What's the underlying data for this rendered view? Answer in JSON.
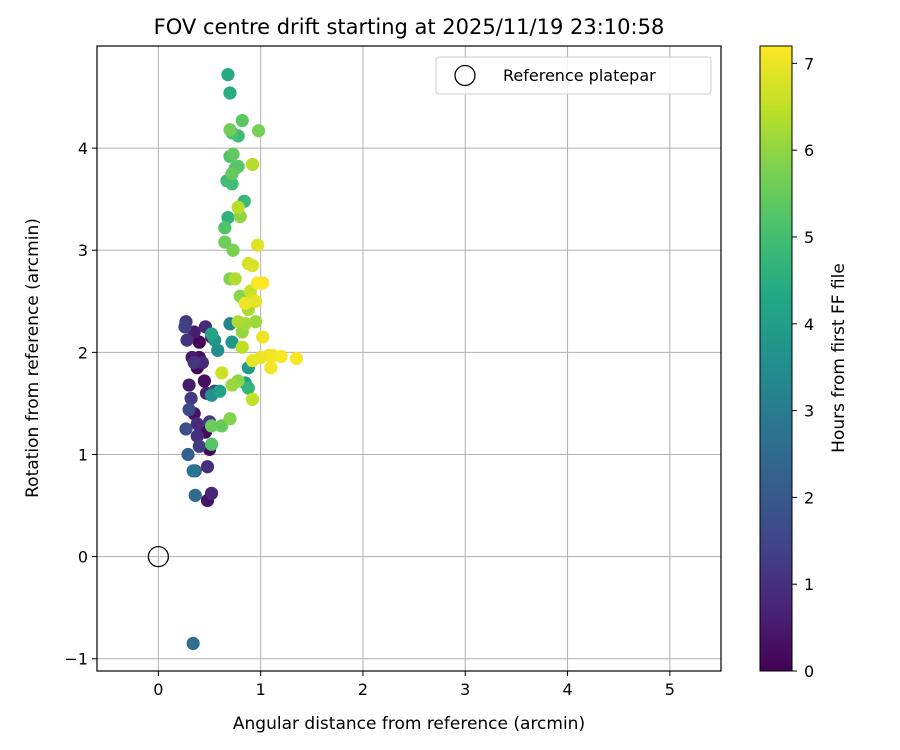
{
  "chart_data": {
    "type": "scatter",
    "title": "FOV centre drift starting at 2025/11/19 23:10:58",
    "xlabel": "Angular distance from reference (arcmin)",
    "ylabel": "Rotation from reference (arcmin)",
    "xlim": [
      -0.6,
      5.5
    ],
    "ylim": [
      -1.12,
      5.0
    ],
    "xticks": [
      0,
      1,
      2,
      3,
      4,
      5
    ],
    "yticks": [
      -1,
      0,
      1,
      2,
      3,
      4
    ],
    "grid": true,
    "legend": {
      "position": "top-right",
      "entries": [
        "Reference platepar"
      ]
    },
    "reference_point": {
      "x": 0.0,
      "y": 0.0,
      "label": "Reference platepar"
    },
    "colorbar": {
      "label": "Hours from first FF file",
      "colormap": "viridis",
      "range": [
        0,
        7.2
      ],
      "ticks": [
        0,
        1,
        2,
        3,
        4,
        5,
        6,
        7
      ]
    },
    "points": [
      {
        "x": 0.38,
        "y": 1.85,
        "h": 0.05
      },
      {
        "x": 0.4,
        "y": 2.1,
        "h": 0.1
      },
      {
        "x": 0.5,
        "y": 1.05,
        "h": 0.15
      },
      {
        "x": 0.46,
        "y": 1.22,
        "h": 0.2
      },
      {
        "x": 0.45,
        "y": 1.72,
        "h": 0.25
      },
      {
        "x": 0.4,
        "y": 1.95,
        "h": 0.3
      },
      {
        "x": 0.35,
        "y": 1.4,
        "h": 0.35
      },
      {
        "x": 0.48,
        "y": 0.55,
        "h": 0.4
      },
      {
        "x": 0.52,
        "y": 2.15,
        "h": 0.45
      },
      {
        "x": 0.33,
        "y": 1.95,
        "h": 0.5
      },
      {
        "x": 0.3,
        "y": 1.68,
        "h": 0.55
      },
      {
        "x": 0.35,
        "y": 2.2,
        "h": 0.6
      },
      {
        "x": 0.47,
        "y": 1.6,
        "h": 0.7
      },
      {
        "x": 0.52,
        "y": 0.62,
        "h": 0.75
      },
      {
        "x": 0.43,
        "y": 1.9,
        "h": 0.8
      },
      {
        "x": 0.46,
        "y": 2.25,
        "h": 0.85
      },
      {
        "x": 0.38,
        "y": 1.3,
        "h": 0.9
      },
      {
        "x": 0.48,
        "y": 0.88,
        "h": 0.95
      },
      {
        "x": 0.38,
        "y": 1.18,
        "h": 1.0
      },
      {
        "x": 0.28,
        "y": 2.12,
        "h": 1.05
      },
      {
        "x": 0.35,
        "y": 1.9,
        "h": 1.1
      },
      {
        "x": 0.27,
        "y": 2.3,
        "h": 1.15
      },
      {
        "x": 0.5,
        "y": 1.32,
        "h": 1.2
      },
      {
        "x": 0.32,
        "y": 1.55,
        "h": 1.25
      },
      {
        "x": 0.4,
        "y": 1.08,
        "h": 1.3
      },
      {
        "x": 0.26,
        "y": 2.25,
        "h": 1.4
      },
      {
        "x": 0.55,
        "y": 1.62,
        "h": 1.5
      },
      {
        "x": 0.3,
        "y": 1.44,
        "h": 1.6
      },
      {
        "x": 0.27,
        "y": 1.25,
        "h": 1.7
      },
      {
        "x": 0.36,
        "y": 0.84,
        "h": 2.0
      },
      {
        "x": 0.29,
        "y": 1.0,
        "h": 2.2
      },
      {
        "x": 0.36,
        "y": 0.6,
        "h": 2.5
      },
      {
        "x": 0.34,
        "y": -0.85,
        "h": 2.6
      },
      {
        "x": 0.34,
        "y": 0.84,
        "h": 2.8
      },
      {
        "x": 0.7,
        "y": 2.28,
        "h": 3.2
      },
      {
        "x": 0.58,
        "y": 2.02,
        "h": 3.5
      },
      {
        "x": 0.52,
        "y": 1.58,
        "h": 3.6
      },
      {
        "x": 0.55,
        "y": 2.12,
        "h": 3.7
      },
      {
        "x": 0.72,
        "y": 2.1,
        "h": 3.8
      },
      {
        "x": 0.88,
        "y": 1.85,
        "h": 3.9
      },
      {
        "x": 0.85,
        "y": 1.7,
        "h": 4.0
      },
      {
        "x": 0.6,
        "y": 1.62,
        "h": 4.1
      },
      {
        "x": 0.52,
        "y": 2.18,
        "h": 4.2
      },
      {
        "x": 0.68,
        "y": 4.72,
        "h": 4.4
      },
      {
        "x": 0.7,
        "y": 4.54,
        "h": 4.45
      },
      {
        "x": 0.68,
        "y": 3.32,
        "h": 4.6
      },
      {
        "x": 0.88,
        "y": 1.65,
        "h": 4.7
      },
      {
        "x": 0.84,
        "y": 3.48,
        "h": 4.8
      },
      {
        "x": 0.78,
        "y": 4.12,
        "h": 4.9
      },
      {
        "x": 0.72,
        "y": 3.65,
        "h": 4.95
      },
      {
        "x": 0.67,
        "y": 3.68,
        "h": 5.0
      },
      {
        "x": 0.75,
        "y": 3.8,
        "h": 5.05
      },
      {
        "x": 0.72,
        "y": 4.15,
        "h": 5.1
      },
      {
        "x": 0.7,
        "y": 3.92,
        "h": 5.15
      },
      {
        "x": 0.65,
        "y": 3.22,
        "h": 5.2
      },
      {
        "x": 0.52,
        "y": 1.1,
        "h": 5.25
      },
      {
        "x": 0.78,
        "y": 3.82,
        "h": 5.3
      },
      {
        "x": 0.82,
        "y": 4.27,
        "h": 5.35
      },
      {
        "x": 0.73,
        "y": 3.94,
        "h": 5.4
      },
      {
        "x": 0.72,
        "y": 3.75,
        "h": 5.45
      },
      {
        "x": 0.62,
        "y": 1.28,
        "h": 5.5
      },
      {
        "x": 0.52,
        "y": 1.28,
        "h": 5.55
      },
      {
        "x": 0.65,
        "y": 3.08,
        "h": 5.6
      },
      {
        "x": 0.7,
        "y": 4.18,
        "h": 5.65
      },
      {
        "x": 0.98,
        "y": 4.17,
        "h": 5.7
      },
      {
        "x": 0.73,
        "y": 3.0,
        "h": 5.75
      },
      {
        "x": 0.7,
        "y": 2.72,
        "h": 5.8
      },
      {
        "x": 0.7,
        "y": 1.35,
        "h": 5.85
      },
      {
        "x": 0.8,
        "y": 2.55,
        "h": 5.9
      },
      {
        "x": 0.78,
        "y": 1.72,
        "h": 5.95
      },
      {
        "x": 0.8,
        "y": 3.33,
        "h": 6.0
      },
      {
        "x": 0.82,
        "y": 2.2,
        "h": 6.05
      },
      {
        "x": 0.72,
        "y": 1.68,
        "h": 6.1
      },
      {
        "x": 0.95,
        "y": 2.3,
        "h": 6.15
      },
      {
        "x": 0.85,
        "y": 2.28,
        "h": 6.2
      },
      {
        "x": 0.88,
        "y": 2.42,
        "h": 6.25
      },
      {
        "x": 0.78,
        "y": 2.3,
        "h": 6.3
      },
      {
        "x": 0.75,
        "y": 2.72,
        "h": 6.35
      },
      {
        "x": 0.92,
        "y": 3.84,
        "h": 6.4
      },
      {
        "x": 0.78,
        "y": 3.42,
        "h": 6.45
      },
      {
        "x": 0.82,
        "y": 2.05,
        "h": 6.5
      },
      {
        "x": 0.92,
        "y": 1.54,
        "h": 6.55
      },
      {
        "x": 0.9,
        "y": 2.6,
        "h": 6.6
      },
      {
        "x": 0.62,
        "y": 1.8,
        "h": 6.65
      },
      {
        "x": 0.92,
        "y": 2.52,
        "h": 6.7
      },
      {
        "x": 0.88,
        "y": 2.87,
        "h": 6.75
      },
      {
        "x": 0.92,
        "y": 2.85,
        "h": 6.8
      },
      {
        "x": 0.97,
        "y": 3.05,
        "h": 6.85
      },
      {
        "x": 0.95,
        "y": 2.5,
        "h": 6.9
      },
      {
        "x": 0.92,
        "y": 1.92,
        "h": 6.95
      },
      {
        "x": 0.85,
        "y": 2.48,
        "h": 7.0
      },
      {
        "x": 1.0,
        "y": 1.95,
        "h": 7.0
      },
      {
        "x": 1.02,
        "y": 2.15,
        "h": 7.05
      },
      {
        "x": 1.08,
        "y": 1.97,
        "h": 7.05
      },
      {
        "x": 1.12,
        "y": 1.97,
        "h": 7.1
      },
      {
        "x": 1.1,
        "y": 1.85,
        "h": 7.1
      },
      {
        "x": 1.2,
        "y": 1.96,
        "h": 7.15
      },
      {
        "x": 1.35,
        "y": 1.94,
        "h": 7.15
      },
      {
        "x": 0.97,
        "y": 2.68,
        "h": 7.18
      },
      {
        "x": 1.02,
        "y": 2.68,
        "h": 7.2
      }
    ]
  }
}
